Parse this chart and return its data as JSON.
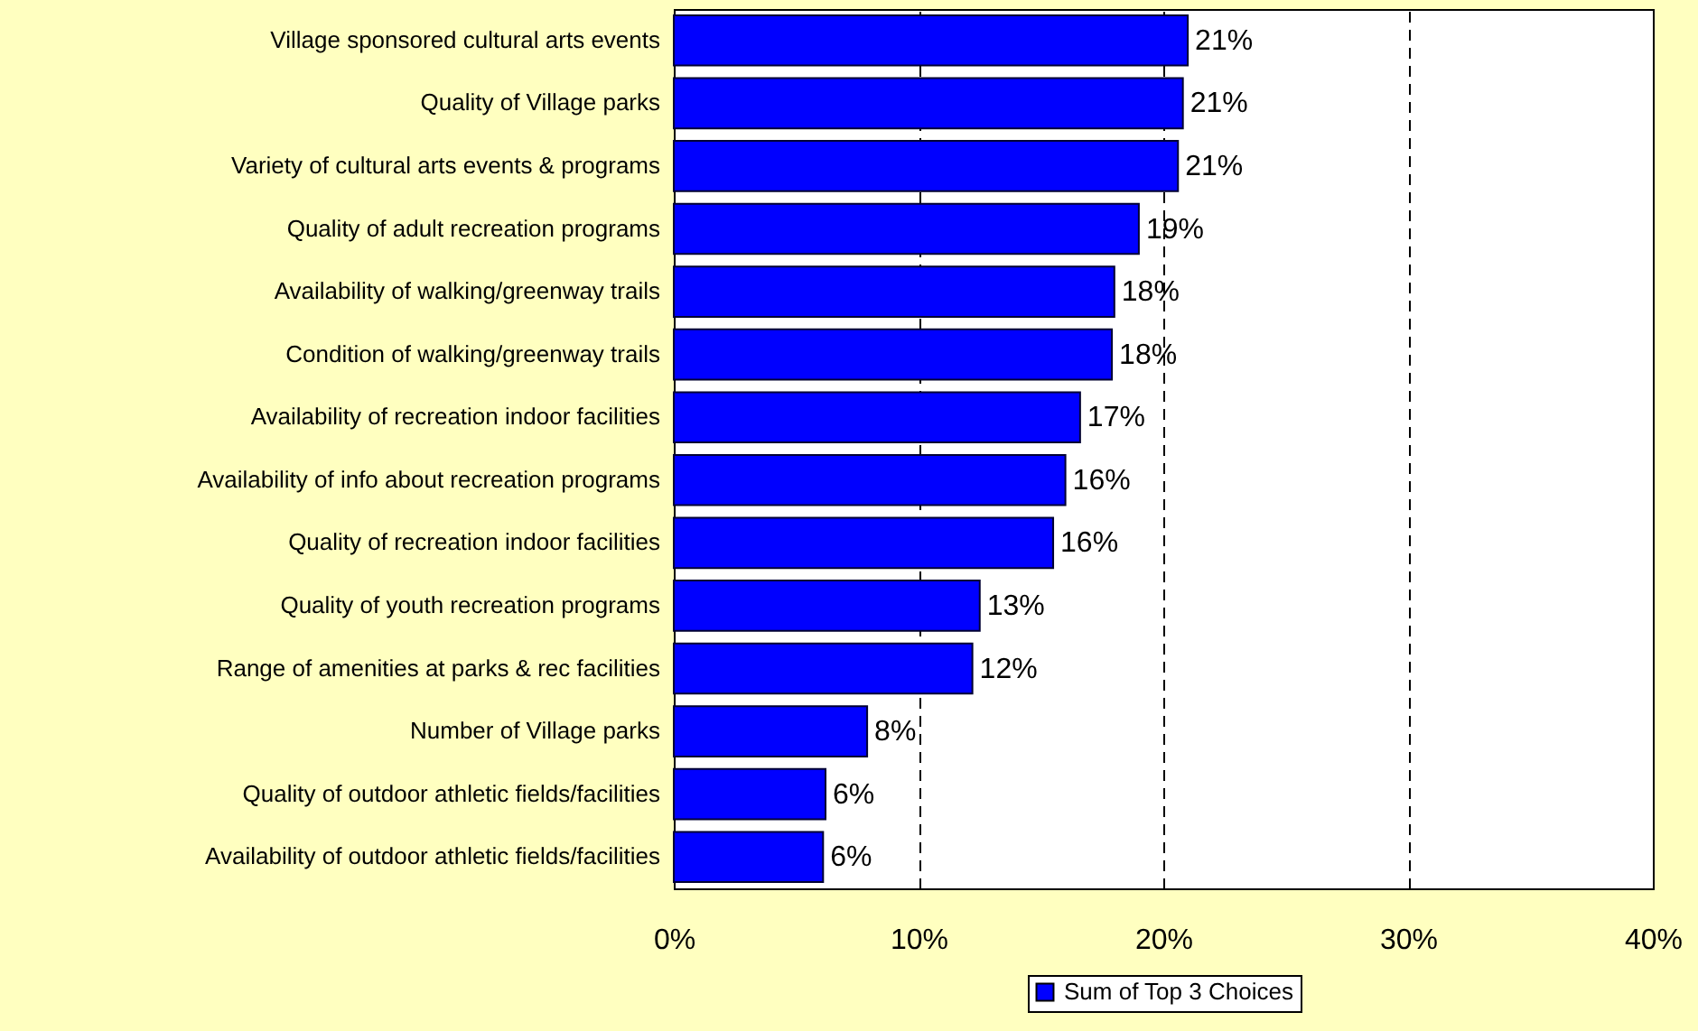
{
  "chart_data": {
    "type": "bar",
    "orientation": "horizontal",
    "categories": [
      "Village sponsored cultural arts events",
      "Quality of Village parks",
      "Variety of cultural arts events & programs",
      "Quality of adult recreation programs",
      "Availability of walking/greenway trails",
      "Condition of walking/greenway trails",
      "Availability of recreation indoor facilities",
      "Availability of info about recreation programs",
      "Quality of recreation indoor facilities",
      "Quality of youth recreation programs",
      "Range of amenities at parks & rec facilities",
      "Number of Village parks",
      "Quality of outdoor athletic fields/facilities",
      "Availability of outdoor athletic fields/facilities"
    ],
    "series": [
      {
        "name": "Sum of Top 3 Choices",
        "color": "#0000ff",
        "values": [
          21.0,
          20.8,
          20.6,
          19.0,
          18.0,
          17.9,
          16.6,
          16.0,
          15.5,
          12.5,
          12.2,
          7.9,
          6.2,
          6.1
        ],
        "value_labels": [
          "21%",
          "21%",
          "21%",
          "19%",
          "18%",
          "18%",
          "17%",
          "16%",
          "16%",
          "13%",
          "12%",
          "8%",
          "6%",
          "6%"
        ]
      }
    ],
    "xlim": [
      0,
      40
    ],
    "xticks": [
      {
        "value": 0,
        "label": "0%"
      },
      {
        "value": 10,
        "label": "10%"
      },
      {
        "value": 20,
        "label": "20%"
      },
      {
        "value": 30,
        "label": "30%"
      },
      {
        "value": 40,
        "label": "40%"
      }
    ],
    "grid": "x",
    "legend": "bottom"
  }
}
